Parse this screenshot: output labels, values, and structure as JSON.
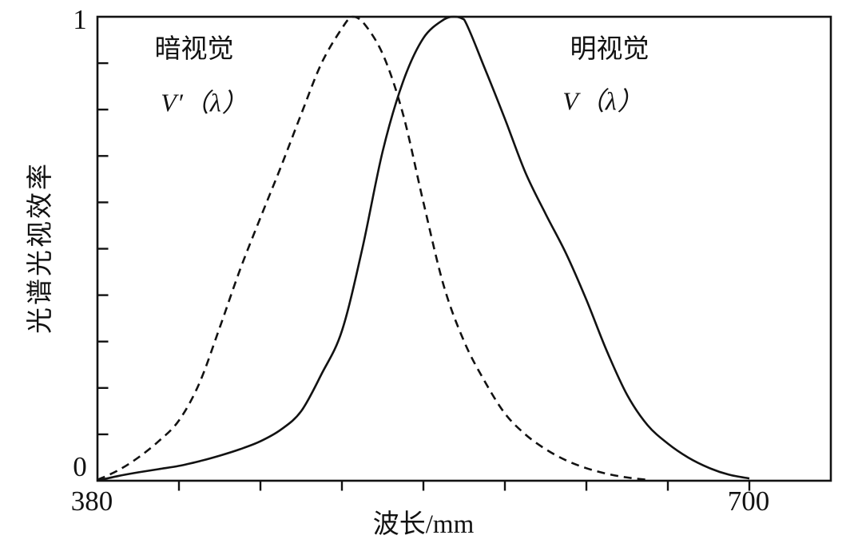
{
  "colors": {
    "background": "#ffffff",
    "ink": "#121212"
  },
  "chart_data": {
    "type": "line",
    "title": "",
    "xlabel": "波长/mm",
    "ylabel": "光谱光视效率",
    "xlim": [
      380,
      740
    ],
    "ylim": [
      0,
      1
    ],
    "x_tick_labels": [
      "380",
      "700"
    ],
    "x_tick_label_positions": [
      380,
      700
    ],
    "x_ticks": [
      420,
      460,
      500,
      540,
      580,
      620,
      660,
      700
    ],
    "y_tick_labels": [
      "0",
      "1"
    ],
    "y_tick_label_positions": [
      0,
      1
    ],
    "y_ticks": [
      0.1,
      0.2,
      0.3,
      0.4,
      0.5,
      0.6,
      0.7,
      0.8,
      0.9
    ],
    "grid": false,
    "legend_position": "inline-annotations",
    "series": [
      {
        "name": "暗视觉 V′(λ)",
        "annotation": "暗视觉",
        "symbol": "V′（λ）",
        "line_style": "dashed",
        "peak_wavelength": 505,
        "x": [
          380,
          390,
          400,
          410,
          420,
          430,
          440,
          450,
          460,
          470,
          480,
          490,
          500,
          505,
          510,
          520,
          530,
          540,
          550,
          560,
          570,
          580,
          590,
          600,
          610,
          620,
          630,
          640,
          650
        ],
        "values": [
          0.002,
          0.022,
          0.05,
          0.085,
          0.13,
          0.21,
          0.33,
          0.455,
          0.567,
          0.676,
          0.79,
          0.9,
          0.975,
          1.0,
          0.99,
          0.92,
          0.79,
          0.6,
          0.42,
          0.3,
          0.215,
          0.145,
          0.1,
          0.068,
          0.044,
          0.027,
          0.015,
          0.007,
          0.002
        ]
      },
      {
        "name": "明视觉 V(λ)",
        "annotation": "明视觉",
        "symbol": "V（λ）",
        "line_style": "solid",
        "peak_wavelength": 555,
        "x": [
          380,
          390,
          400,
          410,
          420,
          430,
          440,
          450,
          460,
          470,
          480,
          490,
          500,
          510,
          520,
          530,
          540,
          550,
          555,
          560,
          570,
          580,
          590,
          600,
          610,
          620,
          630,
          640,
          650,
          660,
          670,
          680,
          690,
          700
        ],
        "values": [
          0.0,
          0.01,
          0.018,
          0.025,
          0.032,
          0.042,
          0.054,
          0.068,
          0.085,
          0.11,
          0.15,
          0.23,
          0.323,
          0.5,
          0.71,
          0.86,
          0.954,
          0.994,
          1.0,
          0.994,
          0.89,
          0.78,
          0.665,
          0.575,
          0.49,
          0.39,
          0.28,
          0.185,
          0.12,
          0.08,
          0.05,
          0.028,
          0.013,
          0.005
        ]
      }
    ]
  }
}
